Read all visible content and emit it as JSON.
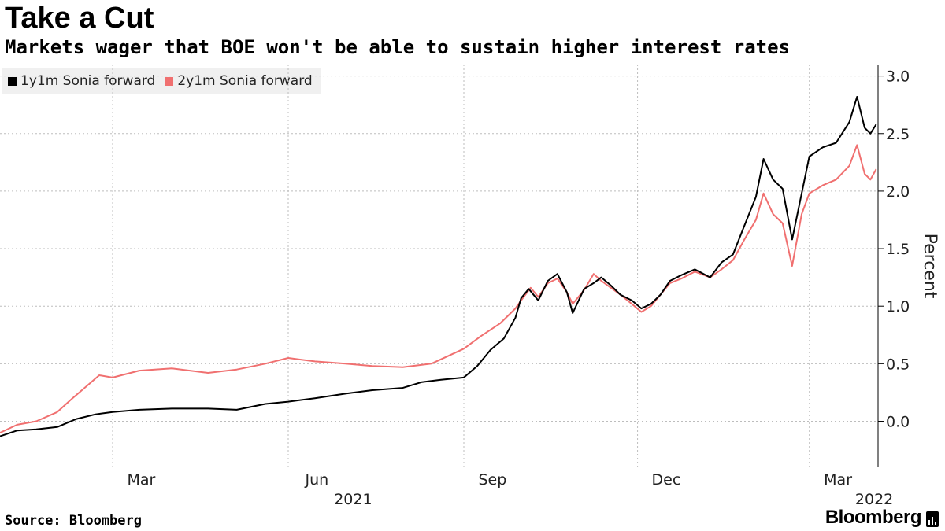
{
  "header": {
    "title": "Take a Cut",
    "subtitle": "Markets wager that BOE won't be able to sustain higher interest rates"
  },
  "footer": {
    "source": "Source: Bloomberg",
    "brand": "Bloomberg"
  },
  "colors": {
    "series_1y1m": "#000000",
    "series_2y1m": "#f07070",
    "grid": "#bdbdbd",
    "axis": "#000000",
    "legend_bg": "#f0f0f0"
  },
  "chart_data": {
    "type": "line",
    "title": "Take a Cut",
    "subtitle": "Markets wager that BOE won't be able to sustain higher interest rates",
    "xlabel": "",
    "ylabel": "Percent",
    "xlim": [
      "2021-01-01",
      "2022-04-06"
    ],
    "ylim": [
      -0.4,
      3.1
    ],
    "yticks": [
      0.0,
      0.5,
      1.0,
      1.5,
      2.0,
      2.5,
      3.0
    ],
    "ytick_labels": [
      "0.0",
      "0.5",
      "1.0",
      "1.5",
      "2.0",
      "2.5",
      "3.0"
    ],
    "xticks": [
      {
        "date": "2021-03-01",
        "label": "Mar",
        "year": ""
      },
      {
        "date": "2021-06-01",
        "label": "Jun",
        "year": "2021"
      },
      {
        "date": "2021-09-01",
        "label": "Sep",
        "year": ""
      },
      {
        "date": "2021-12-01",
        "label": "Dec",
        "year": ""
      },
      {
        "date": "2022-03-01",
        "label": "Mar",
        "year": "2022"
      }
    ],
    "grid": true,
    "legend_position": "top-left",
    "y_axis_side": "right",
    "series": [
      {
        "name": "1y1m Sonia forward",
        "color": "#000000",
        "points": [
          [
            "2021-01-01",
            -0.13
          ],
          [
            "2021-01-10",
            -0.08
          ],
          [
            "2021-01-20",
            -0.07
          ],
          [
            "2021-01-31",
            -0.05
          ],
          [
            "2021-02-10",
            0.02
          ],
          [
            "2021-02-20",
            0.06
          ],
          [
            "2021-03-01",
            0.08
          ],
          [
            "2021-03-15",
            0.1
          ],
          [
            "2021-04-01",
            0.11
          ],
          [
            "2021-04-20",
            0.11
          ],
          [
            "2021-05-05",
            0.1
          ],
          [
            "2021-05-20",
            0.15
          ],
          [
            "2021-06-01",
            0.17
          ],
          [
            "2021-06-15",
            0.2
          ],
          [
            "2021-07-01",
            0.24
          ],
          [
            "2021-07-15",
            0.27
          ],
          [
            "2021-07-31",
            0.29
          ],
          [
            "2021-08-10",
            0.34
          ],
          [
            "2021-08-20",
            0.36
          ],
          [
            "2021-09-01",
            0.38
          ],
          [
            "2021-09-08",
            0.48
          ],
          [
            "2021-09-15",
            0.62
          ],
          [
            "2021-09-22",
            0.72
          ],
          [
            "2021-09-28",
            0.9
          ],
          [
            "2021-10-01",
            1.07
          ],
          [
            "2021-10-05",
            1.15
          ],
          [
            "2021-10-10",
            1.05
          ],
          [
            "2021-10-15",
            1.22
          ],
          [
            "2021-10-20",
            1.28
          ],
          [
            "2021-10-25",
            1.12
          ],
          [
            "2021-10-28",
            0.94
          ],
          [
            "2021-11-03",
            1.15
          ],
          [
            "2021-11-08",
            1.2
          ],
          [
            "2021-11-12",
            1.25
          ],
          [
            "2021-11-17",
            1.18
          ],
          [
            "2021-11-22",
            1.1
          ],
          [
            "2021-11-28",
            1.05
          ],
          [
            "2021-12-03",
            0.98
          ],
          [
            "2021-12-08",
            1.02
          ],
          [
            "2021-12-13",
            1.1
          ],
          [
            "2021-12-18",
            1.22
          ],
          [
            "2021-12-24",
            1.27
          ],
          [
            "2021-12-31",
            1.32
          ],
          [
            "2022-01-08",
            1.25
          ],
          [
            "2022-01-14",
            1.38
          ],
          [
            "2022-01-20",
            1.45
          ],
          [
            "2022-01-26",
            1.7
          ],
          [
            "2022-02-01",
            1.95
          ],
          [
            "2022-02-05",
            2.28
          ],
          [
            "2022-02-10",
            2.1
          ],
          [
            "2022-02-15",
            2.02
          ],
          [
            "2022-02-20",
            1.58
          ],
          [
            "2022-02-25",
            1.98
          ],
          [
            "2022-03-01",
            2.3
          ],
          [
            "2022-03-08",
            2.38
          ],
          [
            "2022-03-15",
            2.42
          ],
          [
            "2022-03-22",
            2.6
          ],
          [
            "2022-03-26",
            2.82
          ],
          [
            "2022-03-30",
            2.55
          ],
          [
            "2022-04-02",
            2.5
          ],
          [
            "2022-04-05",
            2.58
          ]
        ]
      },
      {
        "name": "2y1m Sonia forward",
        "color": "#f07070",
        "points": [
          [
            "2021-01-01",
            -0.1
          ],
          [
            "2021-01-10",
            -0.03
          ],
          [
            "2021-01-20",
            0.0
          ],
          [
            "2021-01-31",
            0.08
          ],
          [
            "2021-02-08",
            0.2
          ],
          [
            "2021-02-15",
            0.3
          ],
          [
            "2021-02-22",
            0.4
          ],
          [
            "2021-03-01",
            0.38
          ],
          [
            "2021-03-15",
            0.44
          ],
          [
            "2021-04-01",
            0.46
          ],
          [
            "2021-04-20",
            0.42
          ],
          [
            "2021-05-05",
            0.45
          ],
          [
            "2021-05-20",
            0.5
          ],
          [
            "2021-06-01",
            0.55
          ],
          [
            "2021-06-15",
            0.52
          ],
          [
            "2021-07-01",
            0.5
          ],
          [
            "2021-07-15",
            0.48
          ],
          [
            "2021-07-31",
            0.47
          ],
          [
            "2021-08-15",
            0.5
          ],
          [
            "2021-09-01",
            0.63
          ],
          [
            "2021-09-10",
            0.74
          ],
          [
            "2021-09-20",
            0.85
          ],
          [
            "2021-09-28",
            0.98
          ],
          [
            "2021-10-01",
            1.05
          ],
          [
            "2021-10-06",
            1.16
          ],
          [
            "2021-10-10",
            1.08
          ],
          [
            "2021-10-15",
            1.2
          ],
          [
            "2021-10-20",
            1.24
          ],
          [
            "2021-10-25",
            1.12
          ],
          [
            "2021-10-28",
            1.02
          ],
          [
            "2021-11-03",
            1.14
          ],
          [
            "2021-11-08",
            1.28
          ],
          [
            "2021-11-12",
            1.22
          ],
          [
            "2021-11-17",
            1.16
          ],
          [
            "2021-11-22",
            1.1
          ],
          [
            "2021-11-28",
            1.02
          ],
          [
            "2021-12-03",
            0.95
          ],
          [
            "2021-12-08",
            1.0
          ],
          [
            "2021-12-13",
            1.1
          ],
          [
            "2021-12-18",
            1.2
          ],
          [
            "2021-12-24",
            1.24
          ],
          [
            "2021-12-31",
            1.3
          ],
          [
            "2022-01-08",
            1.25
          ],
          [
            "2022-01-14",
            1.32
          ],
          [
            "2022-01-20",
            1.4
          ],
          [
            "2022-01-26",
            1.58
          ],
          [
            "2022-02-01",
            1.75
          ],
          [
            "2022-02-05",
            1.98
          ],
          [
            "2022-02-10",
            1.8
          ],
          [
            "2022-02-15",
            1.72
          ],
          [
            "2022-02-20",
            1.35
          ],
          [
            "2022-02-25",
            1.8
          ],
          [
            "2022-03-01",
            1.98
          ],
          [
            "2022-03-08",
            2.05
          ],
          [
            "2022-03-15",
            2.1
          ],
          [
            "2022-03-22",
            2.22
          ],
          [
            "2022-03-26",
            2.4
          ],
          [
            "2022-03-30",
            2.15
          ],
          [
            "2022-04-02",
            2.1
          ],
          [
            "2022-04-05",
            2.19
          ]
        ]
      }
    ]
  }
}
